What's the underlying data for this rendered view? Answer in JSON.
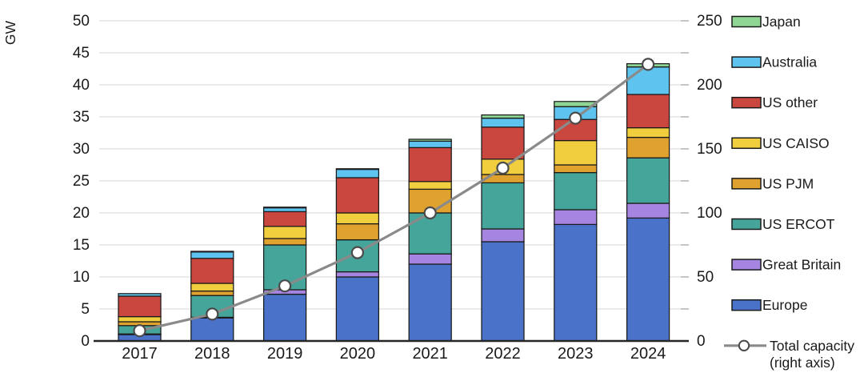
{
  "chart_data": {
    "type": "bar",
    "subtype": "stacked-bars-with-line-overlay",
    "title": "",
    "categories": [
      "2017",
      "2018",
      "2019",
      "2020",
      "2021",
      "2022",
      "2023",
      "2024"
    ],
    "series": [
      {
        "name": "Europe",
        "color": "#4a72c8",
        "values": [
          1.0,
          3.6,
          7.3,
          10.0,
          12.0,
          15.5,
          18.2,
          19.2
        ]
      },
      {
        "name": "Great Britain",
        "color": "#a585e0",
        "values": [
          0.1,
          0.1,
          0.7,
          0.8,
          1.6,
          2.0,
          2.3,
          2.3
        ]
      },
      {
        "name": "US ERCOT",
        "color": "#46a59a",
        "values": [
          1.3,
          3.4,
          7.0,
          5.0,
          6.4,
          7.2,
          5.8,
          7.1
        ]
      },
      {
        "name": "US PJM",
        "color": "#dfa22e",
        "values": [
          0.6,
          0.7,
          1.0,
          2.5,
          3.7,
          1.3,
          1.2,
          3.2
        ]
      },
      {
        "name": "US CAISO",
        "color": "#f0ce3d",
        "values": [
          0.8,
          1.2,
          1.9,
          1.7,
          1.2,
          2.4,
          3.8,
          1.5
        ]
      },
      {
        "name": "US other",
        "color": "#c9473f",
        "values": [
          3.2,
          3.9,
          2.3,
          5.5,
          5.3,
          5.0,
          3.3,
          5.2
        ]
      },
      {
        "name": "Australia",
        "color": "#5ec3ee",
        "values": [
          0.4,
          1.0,
          0.6,
          1.3,
          1.0,
          1.4,
          2.0,
          4.3
        ]
      },
      {
        "name": "Japan",
        "color": "#8fd694",
        "values": [
          0.0,
          0.1,
          0.1,
          0.1,
          0.3,
          0.5,
          0.8,
          0.5
        ]
      }
    ],
    "line_series": {
      "name": "Total capacity (right axis)",
      "legend_label_line1": "Total capacity",
      "legend_label_line2": "(right axis)",
      "axis": "right",
      "color": "#8a8a8a",
      "marker_fill": "#ffffff",
      "marker_stroke": "#4a4a4a",
      "values": [
        8,
        21,
        43,
        69,
        100,
        135,
        174,
        216
      ]
    },
    "left_axis": {
      "label": "GW",
      "min": 0,
      "max": 50,
      "ticks": [
        0,
        5,
        10,
        15,
        20,
        25,
        30,
        35,
        40,
        45,
        50
      ]
    },
    "right_axis": {
      "label": "",
      "min": 0,
      "max": 250,
      "ticks": [
        0,
        50,
        100,
        150,
        200,
        250
      ],
      "minor_tick_step": 25
    },
    "legend_position": "right",
    "legend_order_top_down": [
      "Japan",
      "Australia",
      "US other",
      "US CAISO",
      "US PJM",
      "US ERCOT",
      "Great Britain",
      "Europe",
      "Total capacity (right axis)"
    ],
    "grid": true,
    "style_colors": {
      "gridline": "#dedede",
      "axis_line": "#262626",
      "bar_outline": "#1a1a1a",
      "text": "#1a1a1a"
    }
  }
}
